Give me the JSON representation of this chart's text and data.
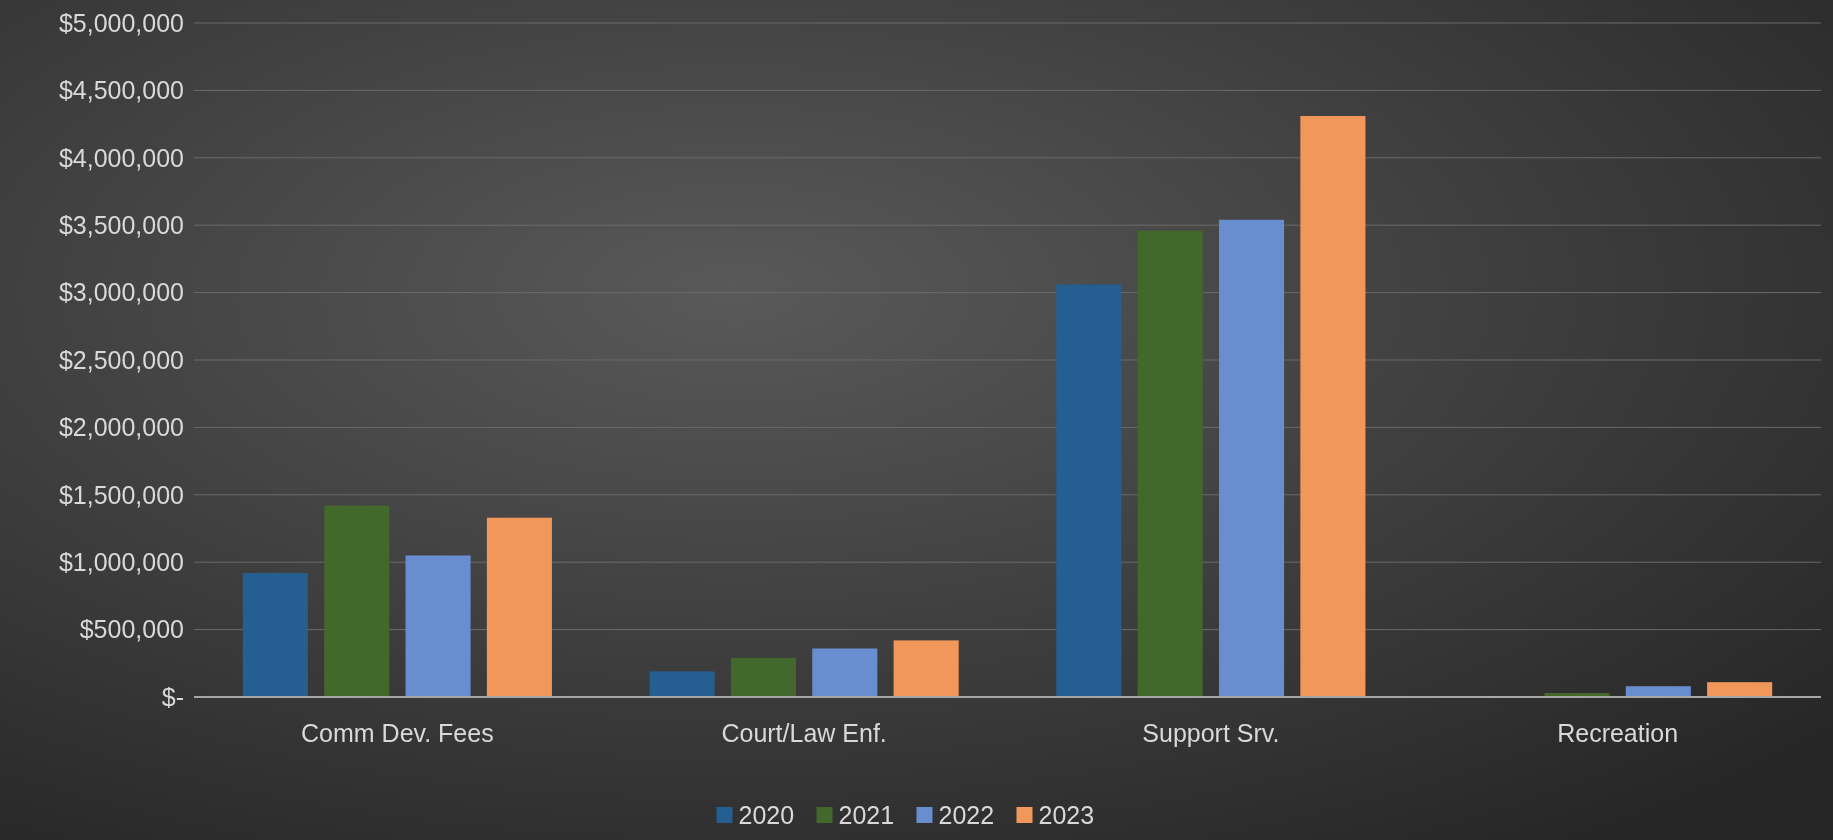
{
  "chart_data": {
    "type": "bar",
    "categories": [
      "Comm Dev. Fees",
      "Court/Law Enf.",
      "Support Srv.",
      "Recreation"
    ],
    "series": [
      {
        "name": "2020",
        "color": "#255e91",
        "values": [
          920000,
          190000,
          3060000,
          5000
        ]
      },
      {
        "name": "2021",
        "color": "#43682b",
        "values": [
          1420000,
          290000,
          3460000,
          30000
        ]
      },
      {
        "name": "2022",
        "color": "#698ed0",
        "values": [
          1050000,
          360000,
          3540000,
          80000
        ]
      },
      {
        "name": "2023",
        "color": "#f1975a",
        "values": [
          1330000,
          420000,
          4310000,
          110000
        ]
      }
    ],
    "ylim": [
      0,
      5000000
    ],
    "yticks": [
      {
        "value": 0,
        "label": "$-"
      },
      {
        "value": 500000,
        "label": "$500,000"
      },
      {
        "value": 1000000,
        "label": "$1,000,000"
      },
      {
        "value": 1500000,
        "label": "$1,500,000"
      },
      {
        "value": 2000000,
        "label": "$2,000,000"
      },
      {
        "value": 2500000,
        "label": "$2,500,000"
      },
      {
        "value": 3000000,
        "label": "$3,000,000"
      },
      {
        "value": 3500000,
        "label": "$3,500,000"
      },
      {
        "value": 4000000,
        "label": "$4,000,000"
      },
      {
        "value": 4500000,
        "label": "$4,500,000"
      },
      {
        "value": 5000000,
        "label": "$5,000,000"
      }
    ],
    "grid": "y",
    "legend": "bottom"
  }
}
